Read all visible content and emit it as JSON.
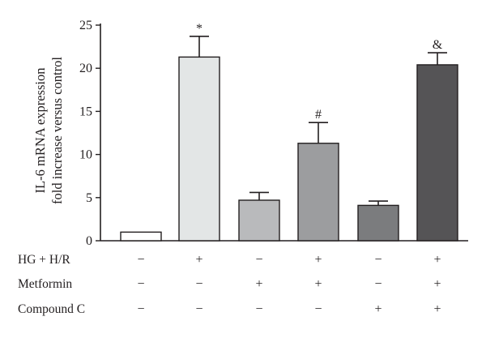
{
  "chart_data": {
    "type": "bar",
    "ylabel_lines": [
      "IL-6 mRNA expression",
      "fold increase versus control"
    ],
    "ylim": [
      0,
      25
    ],
    "yticks": [
      0,
      5,
      10,
      15,
      20,
      25
    ],
    "grid": false,
    "series": [
      {
        "values": [
          1.0,
          21.3,
          4.7,
          11.3,
          4.1,
          20.4
        ],
        "errors": [
          0,
          2.4,
          0.9,
          2.4,
          0.5,
          1.4
        ],
        "significance": [
          "",
          "*",
          "",
          "#",
          "",
          "&"
        ],
        "colors": [
          "#ffffff",
          "#e3e6e6",
          "#b9babc",
          "#9c9d9f",
          "#7b7c7e",
          "#555456"
        ]
      }
    ],
    "conditions": [
      {
        "label": "HG + H/R",
        "marks": [
          "−",
          "+",
          "−",
          "+",
          "−",
          "+"
        ]
      },
      {
        "label": "Metformin",
        "marks": [
          "−",
          "−",
          "+",
          "+",
          "−",
          "+"
        ]
      },
      {
        "label": "Compound C",
        "marks": [
          "−",
          "−",
          "−",
          "−",
          "+",
          "+"
        ]
      }
    ]
  }
}
